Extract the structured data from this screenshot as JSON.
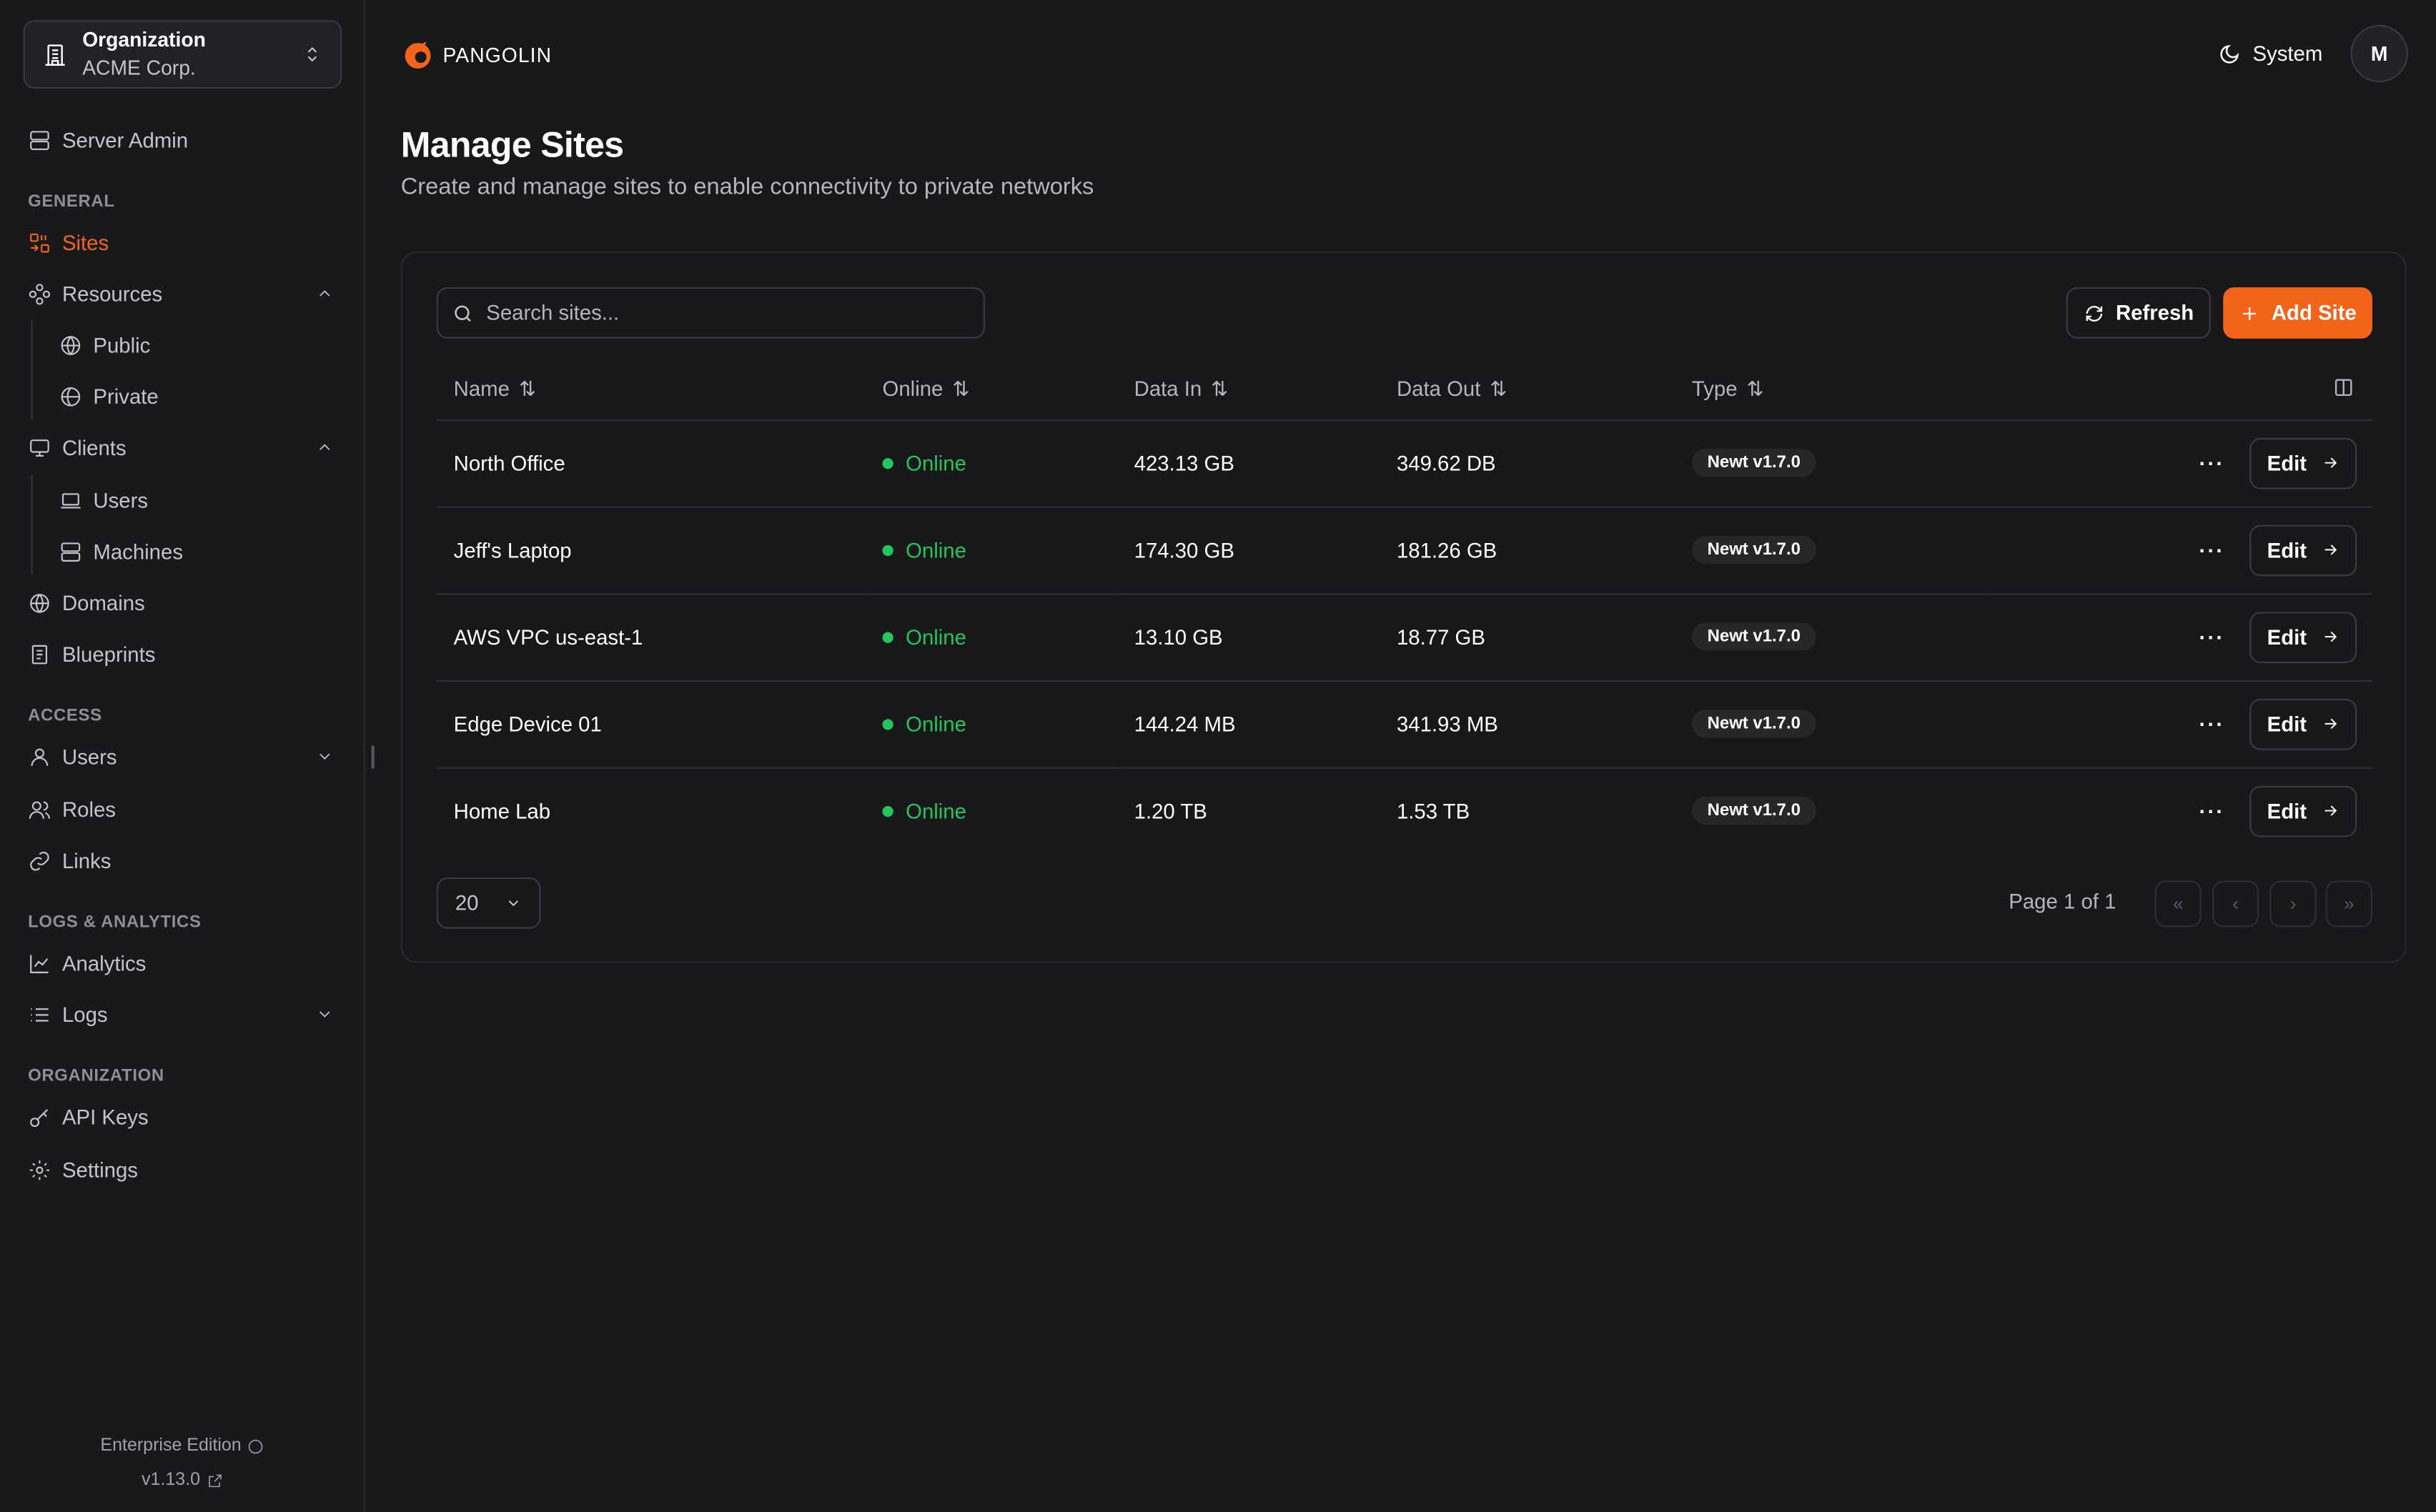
{
  "org": {
    "label": "Organization",
    "name": "ACME Corp."
  },
  "brand": {
    "name": "PANGOLIN",
    "accent": "#f26419"
  },
  "sidebar": {
    "server_admin": "Server Admin",
    "sections": {
      "general": "GENERAL",
      "access": "ACCESS",
      "logs": "LOGS & ANALYTICS",
      "organization": "ORGANIZATION"
    },
    "items": {
      "sites": "Sites",
      "resources": "Resources",
      "public": "Public",
      "private": "Private",
      "clients": "Clients",
      "client_users": "Users",
      "machines": "Machines",
      "domains": "Domains",
      "blueprints": "Blueprints",
      "users": "Users",
      "roles": "Roles",
      "links": "Links",
      "analytics": "Analytics",
      "logs": "Logs",
      "api_keys": "API Keys",
      "settings": "Settings"
    },
    "footer": {
      "edition": "Enterprise Edition",
      "version": "v1.13.0"
    }
  },
  "header": {
    "theme": "System",
    "avatar": "M"
  },
  "page": {
    "title": "Manage Sites",
    "subtitle": "Create and manage sites to enable connectivity to private networks"
  },
  "toolbar": {
    "search_placeholder": "Search sites...",
    "refresh": "Refresh",
    "add": "Add Site"
  },
  "table": {
    "columns": [
      "Name",
      "Online",
      "Data In",
      "Data Out",
      "Type"
    ],
    "rows": [
      {
        "name": "North Office",
        "status": "Online",
        "data_in": "423.13 GB",
        "data_out": "349.62 DB",
        "type": "Newt v1.7.0",
        "edit": "Edit"
      },
      {
        "name": "Jeff's Laptop",
        "status": "Online",
        "data_in": "174.30 GB",
        "data_out": "181.26 GB",
        "type": "Newt v1.7.0",
        "edit": "Edit"
      },
      {
        "name": "AWS VPC us-east-1",
        "status": "Online",
        "data_in": "13.10 GB",
        "data_out": "18.77 GB",
        "type": "Newt v1.7.0",
        "edit": "Edit"
      },
      {
        "name": "Edge Device 01",
        "status": "Online",
        "data_in": "144.24 MB",
        "data_out": "341.93 MB",
        "type": "Newt v1.7.0",
        "edit": "Edit"
      },
      {
        "name": "Home Lab",
        "status": "Online",
        "data_in": "1.20 TB",
        "data_out": "1.53 TB",
        "type": "Newt v1.7.0",
        "edit": "Edit"
      }
    ]
  },
  "pagination": {
    "page_size": "20",
    "info": "Page 1 of 1"
  }
}
